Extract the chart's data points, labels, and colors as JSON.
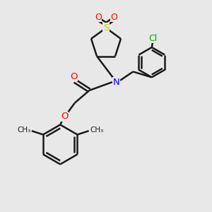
{
  "bg_color": "#e8e8e8",
  "bond_color": "#1a1a1a",
  "N_color": "#0000ff",
  "O_color": "#ff0000",
  "S_color": "#cccc00",
  "Cl_color": "#00aa00",
  "line_width": 1.8,
  "figsize": [
    3.0,
    3.0
  ],
  "dpi": 100,
  "xlim": [
    0,
    10
  ],
  "ylim": [
    0,
    10
  ]
}
